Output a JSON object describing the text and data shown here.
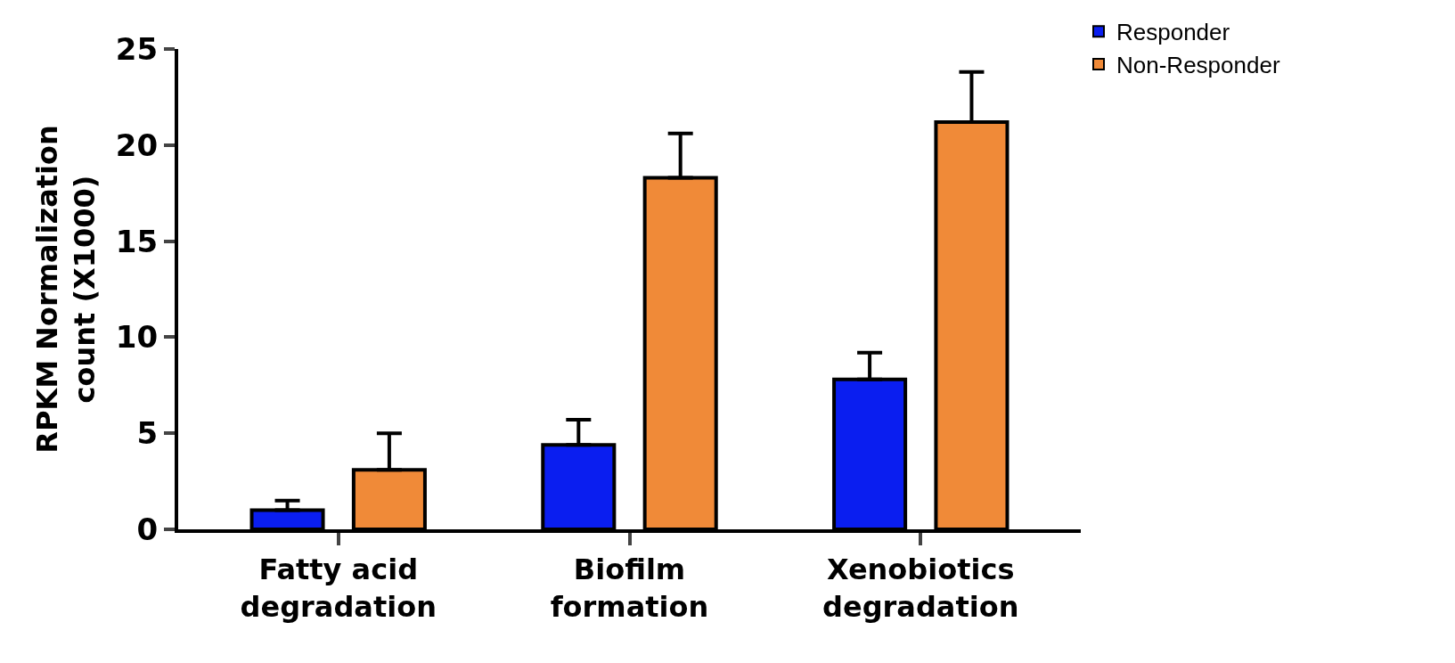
{
  "chart_data": {
    "type": "bar",
    "ylabel": "RPKM Normalization\ncount (X1000)",
    "categories": [
      "Fatty acid\ndegradation",
      "Biofilm\nformation",
      "Xenobiotics\ndegradation"
    ],
    "series": [
      {
        "name": "Responder",
        "color": "#0a1ef0",
        "values": [
          1.0,
          4.4,
          7.8
        ],
        "errors": [
          [
            1.0,
            1.5
          ],
          [
            4.4,
            5.7
          ],
          [
            7.8,
            9.2
          ]
        ]
      },
      {
        "name": "Non-Responder",
        "color": "#f08a38",
        "values": [
          3.1,
          18.3,
          21.2
        ],
        "errors": [
          [
            3.1,
            5.0
          ],
          [
            18.3,
            20.6
          ],
          [
            21.2,
            23.8
          ]
        ]
      }
    ],
    "ylim": [
      0,
      25
    ],
    "yticks": [
      0,
      5,
      10,
      15,
      20,
      25
    ],
    "legend": "top right"
  }
}
